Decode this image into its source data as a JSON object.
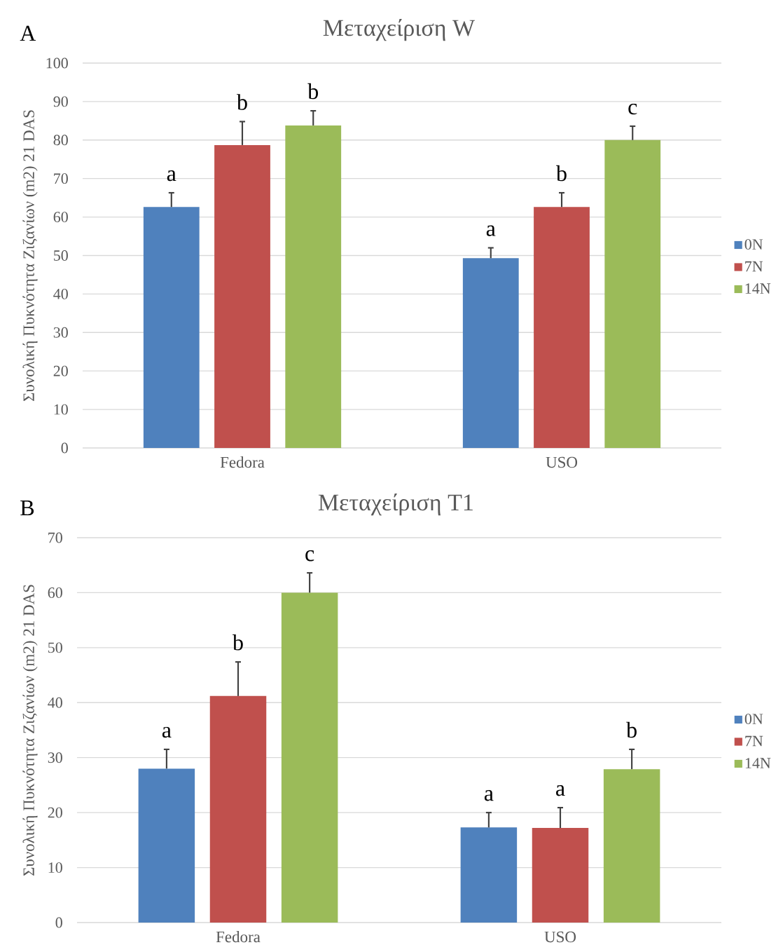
{
  "chart_data": [
    {
      "type": "bar",
      "title": "Μεταχείριση W",
      "ylabel": "Συνολική Πυκνότητα Ζιζανίων (m2) 21 DAS",
      "annotations": [
        "A"
      ],
      "categories": [
        "Fedora",
        "USO"
      ],
      "series": [
        {
          "name": "0N",
          "color": "#4f81bd",
          "values": [
            62.6,
            49.3
          ],
          "errors": [
            [
              62.6,
              66.3
            ],
            [
              49.3,
              52.0
            ]
          ],
          "value_labels": [
            "a",
            "a"
          ]
        },
        {
          "name": "7N",
          "color": "#c0504d",
          "values": [
            78.7,
            62.6
          ],
          "errors": [
            [
              78.7,
              84.8
            ],
            [
              62.6,
              66.3
            ]
          ],
          "value_labels": [
            "b",
            "b"
          ]
        },
        {
          "name": "14N",
          "color": "#9bbb59",
          "values": [
            83.8,
            80.0
          ],
          "errors": [
            [
              83.8,
              87.6
            ],
            [
              80.0,
              83.6
            ]
          ],
          "value_labels": [
            "b",
            "c"
          ]
        }
      ],
      "ylim": [
        0,
        100
      ],
      "yticks": [
        0,
        10,
        20,
        30,
        40,
        50,
        60,
        70,
        80,
        90,
        100
      ],
      "grid": "y",
      "legend": "right"
    },
    {
      "type": "bar",
      "title": "Μεταχείριση T1",
      "ylabel": "Συνολική Πυκνότητα Ζιζανίων (m2) 21 DAS",
      "annotations": [
        "B"
      ],
      "categories": [
        "Fedora",
        "USO"
      ],
      "series": [
        {
          "name": "0N",
          "color": "#4f81bd",
          "values": [
            28.0,
            17.3
          ],
          "errors": [
            [
              28.0,
              31.5
            ],
            [
              17.3,
              20.0
            ]
          ],
          "value_labels": [
            "a",
            "a"
          ]
        },
        {
          "name": "7N",
          "color": "#c0504d",
          "values": [
            41.2,
            17.2
          ],
          "errors": [
            [
              41.2,
              47.4
            ],
            [
              17.2,
              20.9
            ]
          ],
          "value_labels": [
            "b",
            "a"
          ]
        },
        {
          "name": "14N",
          "color": "#9bbb59",
          "values": [
            60.0,
            27.9
          ],
          "errors": [
            [
              60.0,
              63.6
            ],
            [
              27.9,
              31.5
            ]
          ],
          "value_labels": [
            "c",
            "b"
          ]
        }
      ],
      "ylim": [
        0,
        70
      ],
      "yticks": [
        0,
        10,
        20,
        30,
        40,
        50,
        60,
        70
      ],
      "grid": "y",
      "legend": "right"
    }
  ]
}
